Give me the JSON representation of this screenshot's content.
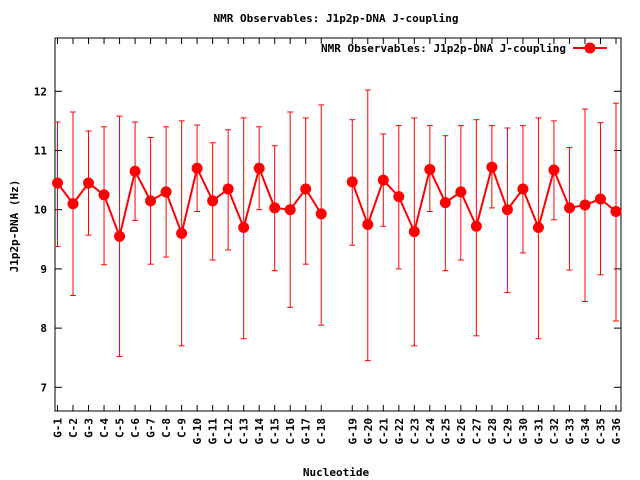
{
  "chart_data": {
    "type": "line",
    "title": "NMR Observables: J1p2p-DNA J-coupling",
    "xlabel": "Nucleotide",
    "ylabel": "J1p2p-DNA (Hz)",
    "ylim": [
      6.6,
      12.9
    ],
    "yticks": [
      7,
      8,
      9,
      10,
      11,
      12
    ],
    "grid": false,
    "legend_position": "top-right",
    "series_color": "#ff0000",
    "categories": [
      "G-1",
      "C-2",
      "G-3",
      "C-4",
      "C-5",
      "C-6",
      "G-7",
      "C-8",
      "C-9",
      "G-10",
      "G-11",
      "C-12",
      "C-13",
      "G-14",
      "C-15",
      "C-16",
      "G-17",
      "C-18",
      "G-19",
      "G-20",
      "C-21",
      "G-22",
      "C-23",
      "C-24",
      "G-25",
      "G-26",
      "C-27",
      "G-28",
      "C-29",
      "G-30",
      "G-31",
      "C-32",
      "G-33",
      "G-34",
      "C-35",
      "G-36"
    ],
    "gap_after_index": 17,
    "series": [
      {
        "name": "NMR Observables: J1p2p-DNA J-coupling",
        "values": [
          10.45,
          10.1,
          10.45,
          10.25,
          9.55,
          10.65,
          10.15,
          10.3,
          9.6,
          10.7,
          10.15,
          10.35,
          9.7,
          10.7,
          10.03,
          10.0,
          10.35,
          9.93,
          10.47,
          9.75,
          10.5,
          10.22,
          9.63,
          10.68,
          10.12,
          10.3,
          9.72,
          10.72,
          10.0,
          10.35,
          9.7,
          10.67,
          10.03,
          10.08,
          10.18,
          9.97
        ],
        "err_low": [
          9.38,
          8.55,
          9.57,
          9.07,
          7.52,
          9.82,
          9.08,
          9.2,
          7.7,
          9.97,
          9.15,
          9.32,
          7.82,
          10.0,
          8.97,
          8.35,
          9.08,
          8.05,
          9.4,
          7.45,
          9.72,
          9.0,
          7.7,
          9.97,
          8.97,
          9.15,
          7.87,
          10.03,
          8.6,
          9.27,
          7.82,
          9.83,
          8.98,
          8.45,
          8.9,
          8.12
        ],
        "err_high": [
          11.48,
          11.65,
          11.33,
          11.4,
          11.58,
          11.48,
          11.22,
          11.4,
          11.5,
          11.43,
          11.13,
          11.35,
          11.55,
          11.4,
          11.08,
          11.65,
          11.55,
          11.77,
          11.52,
          12.02,
          11.28,
          11.42,
          11.55,
          11.42,
          11.25,
          11.42,
          11.52,
          11.42,
          11.38,
          11.42,
          11.55,
          11.5,
          11.05,
          11.7,
          11.47,
          11.8
        ]
      }
    ]
  }
}
